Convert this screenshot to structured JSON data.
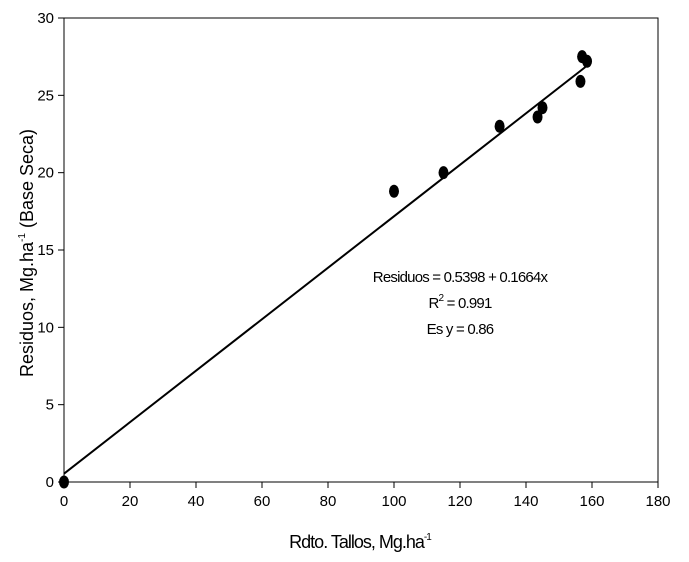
{
  "chart_data": {
    "type": "scatter",
    "title": "",
    "xlabel": "Rdto. Tallos, Mg.ha",
    "xlabel_superscript": "-1",
    "ylabel": "Residuos, Mg.ha",
    "ylabel_superscript": "-1",
    "ylabel_suffix": " (Base Seca)",
    "xlim": [
      0,
      180
    ],
    "ylim": [
      0,
      30
    ],
    "xticks": [
      0,
      20,
      40,
      60,
      80,
      100,
      120,
      140,
      160,
      180
    ],
    "yticks": [
      0,
      5,
      10,
      15,
      20,
      25,
      30
    ],
    "grid": false,
    "legend": "none",
    "series": [
      {
        "points": [
          {
            "x": 0,
            "y": 0
          },
          {
            "x": 100,
            "y": 18.8
          },
          {
            "x": 115,
            "y": 20.0
          },
          {
            "x": 132,
            "y": 23.0
          },
          {
            "x": 143.5,
            "y": 23.6
          },
          {
            "x": 145,
            "y": 24.2
          },
          {
            "x": 156.5,
            "y": 25.9
          },
          {
            "x": 157,
            "y": 27.5
          },
          {
            "x": 158.5,
            "y": 27.2
          }
        ],
        "marker_color": "#000000"
      }
    ],
    "trendline": {
      "intercept": 0.5398,
      "slope": 0.1664,
      "x_range": [
        0,
        158
      ],
      "color": "#000000"
    },
    "annotations": {
      "equation": "Residuos = 0.5398 + 0.1664x",
      "r2_prefix": "R",
      "r2_exponent": "2",
      "r2_value": " = 0.991",
      "se": "Es y = 0.86"
    }
  }
}
